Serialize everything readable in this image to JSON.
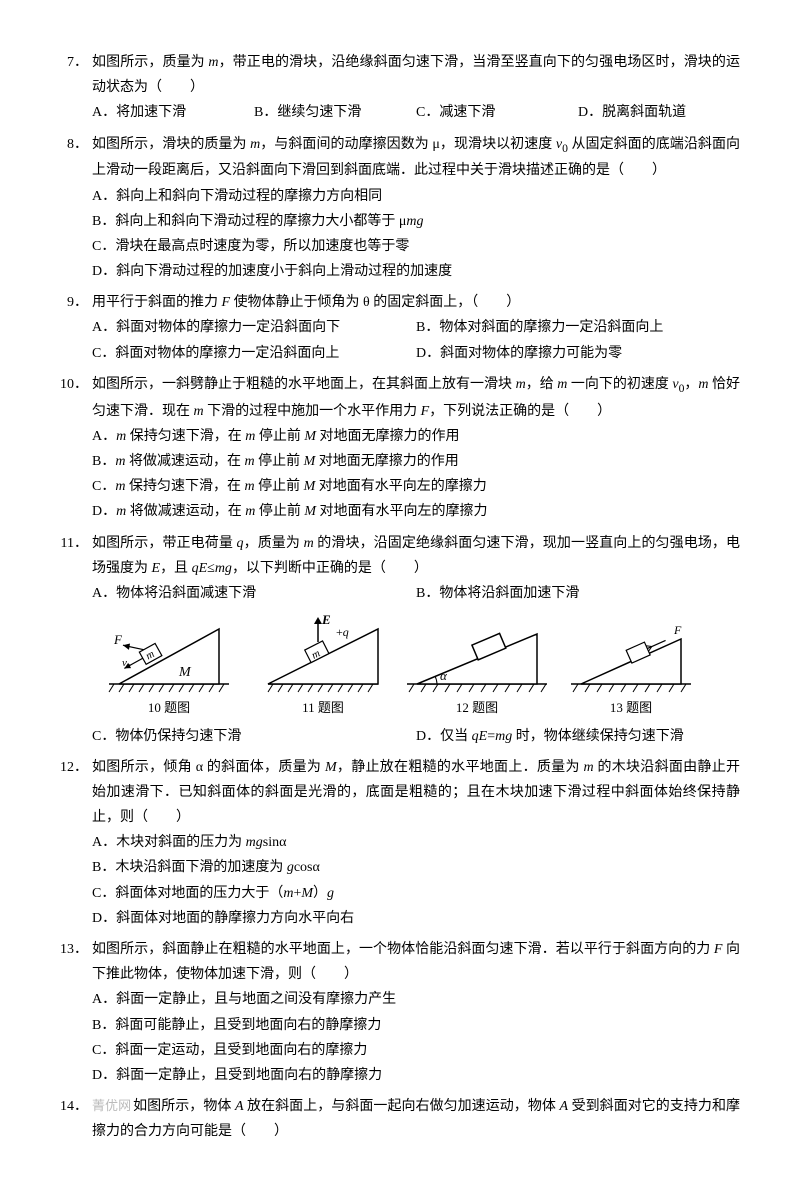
{
  "questions": [
    {
      "num": "7．",
      "stem": "如图所示，质量为 <span class='italic'>m</span>，带正电的滑块，沿绝缘斜面匀速下滑，当滑至竖直向下的匀强电场区时，滑块的运动状态为（　　）",
      "options_layout": "4",
      "options": [
        "A．将加速下滑",
        "B．继续匀速下滑",
        "C．减速下滑",
        "D．脱离斜面轨道"
      ]
    },
    {
      "num": "8．",
      "stem": "如图所示，滑块的质量为 <span class='italic'>m</span>，与斜面间的动摩擦因数为 μ，现滑块以初速度 <span class='italic'>v</span><sub>0</sub> 从固定斜面的底端沿斜面向上滑动一段距离后，又沿斜面向下滑回到斜面底端．此过程中关于滑块描述正确的是（　　）",
      "options_layout": "1",
      "options": [
        "A．斜向上和斜向下滑动过程的摩擦力方向相同",
        "B．斜向上和斜向下滑动过程的摩擦力大小都等于 μ<span class='italic'>mg</span>",
        "C．滑块在最高点时速度为零，所以加速度也等于零",
        "D．斜向下滑动过程的加速度小于斜向上滑动过程的加速度"
      ]
    },
    {
      "num": "9．",
      "stem": "用平行于斜面的推力 <span class='italic'>F</span> 使物体静止于倾角为 θ 的固定斜面上，（　　）",
      "options_layout": "2",
      "options": [
        "A．斜面对物体的摩擦力一定沿斜面向下",
        "B．物体对斜面的摩擦力一定沿斜面向上",
        "C．斜面对物体的摩擦力一定沿斜面向上",
        "D．斜面对物体的摩擦力可能为零"
      ]
    },
    {
      "num": "10．",
      "stem": "如图所示，一斜劈静止于粗糙的水平地面上，在其斜面上放有一滑块 <span class='italic'>m</span>，给 <span class='italic'>m</span> 一向下的初速度 <span class='italic'>v</span><sub>0</sub>，<span class='italic'>m</span> 恰好匀速下滑．现在 <span class='italic'>m</span> 下滑的过程中施加一个水平作用力 <span class='italic'>F</span>，下列说法正确的是（　　）",
      "options_layout": "1",
      "options": [
        "A．<span class='italic'>m</span> 保持匀速下滑，在 <span class='italic'>m</span> 停止前 <span class='italic'>M</span> 对地面无摩擦力的作用",
        "B．<span class='italic'>m</span> 将做减速运动，在 <span class='italic'>m</span> 停止前 <span class='italic'>M</span> 对地面无摩擦力的作用",
        "C．<span class='italic'>m</span> 保持匀速下滑，在 <span class='italic'>m</span> 停止前 <span class='italic'>M</span> 对地面有水平向左的摩擦力",
        "D．<span class='italic'>m</span> 将做减速运动，在 <span class='italic'>m</span> 停止前 <span class='italic'>M</span> 对地面有水平向左的摩擦力"
      ]
    },
    {
      "num": "11．",
      "stem": "如图所示，带正电荷量 <span class='italic'>q</span>，质量为 <span class='italic'>m</span> 的滑块，沿固定绝缘斜面匀速下滑，现加一竖直向上的匀强电场，电场强度为 <span class='italic'>E</span>，且 <span class='italic'>qE</span>≤<span class='italic'>mg</span>，以下判断中正确的是（　　）",
      "options_layout": "2",
      "options_top": [
        "A．物体将沿斜面减速下滑",
        "B．物体将沿斜面加速下滑"
      ],
      "options_bottom": [
        "C．物体仍保持匀速下滑",
        "D．仅当 <span class='italic'>qE</span>=<span class='italic'>mg</span> 时，物体继续保持匀速下滑"
      ]
    },
    {
      "num": "12．",
      "stem": "如图所示，倾角 α 的斜面体，质量为 <span class='italic'>M</span>，静止放在粗糙的水平地面上．质量为 <span class='italic'>m</span> 的木块沿斜面由静止开始加速滑下．已知斜面体的斜面是光滑的，底面是粗糙的；且在木块加速下滑过程中斜面体始终保持静止，则（　　）",
      "options_layout": "1",
      "options": [
        "A．木块对斜面的压力为 <span class='italic'>mg</span>sinα",
        "B．木块沿斜面下滑的加速度为 <span class='italic'>g</span>cosα",
        "C．斜面体对地面的压力大于（<span class='italic'>m</span>+<span class='italic'>M</span>）<span class='italic'>g</span>",
        "D．斜面体对地面的静摩擦力方向水平向右"
      ]
    },
    {
      "num": "13．",
      "stem": "如图所示，斜面静止在粗糙的水平地面上，一个物体恰能沿斜面匀速下滑．若以平行于斜面方向的力 <span class='italic'>F</span> 向下推此物体，使物体加速下滑，则（　　）",
      "options_layout": "1",
      "options": [
        "A．斜面一定静止，且与地面之间没有摩擦力产生",
        "B．斜面可能静止，且受到地面向右的静摩擦力",
        "C．斜面一定运动，且受到地面向右的摩擦力",
        "D．斜面一定静止，且受到地面向右的静摩擦力"
      ]
    },
    {
      "num": "14．",
      "stem": "如图所示，物体 <span class='italic'>A</span> 放在斜面上，与斜面一起向右做匀加速运动，物体 <span class='italic'>A</span> 受到斜面对它的支持力和摩擦力的合力方向可能是（　　）",
      "watermark": "菁优网"
    }
  ],
  "figure_captions": [
    "10 题图",
    "11 题图",
    "12 题图",
    "13 题图"
  ],
  "colors": {
    "text": "#000000",
    "bg": "#ffffff",
    "watermark": "#bbbbbb",
    "stroke": "#000000"
  }
}
